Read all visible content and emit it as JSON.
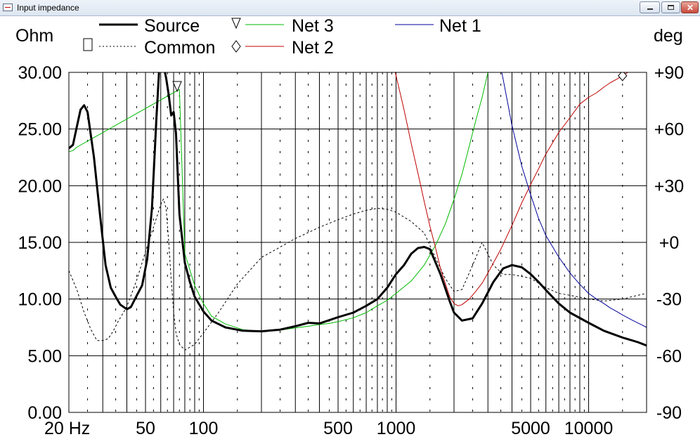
{
  "window": {
    "title": "Input impedance",
    "minimize_icon": "minimize-icon",
    "maximize_icon": "maximize-icon",
    "close_icon": "close-icon"
  },
  "chart_data": {
    "type": "line",
    "title": "",
    "xscale": "log",
    "xlim": [
      20,
      20000
    ],
    "x_tick_labels": [
      {
        "x": 20,
        "label": "20 Hz"
      },
      {
        "x": 50,
        "label": "50"
      },
      {
        "x": 100,
        "label": "100"
      },
      {
        "x": 500,
        "label": "500"
      },
      {
        "x": 1000,
        "label": "1000"
      },
      {
        "x": 5000,
        "label": "5000"
      },
      {
        "x": 10000,
        "label": "10000"
      }
    ],
    "y_left": {
      "label": "Ohm",
      "lim": [
        0,
        30
      ],
      "ticks": [
        "0.00",
        "5.00",
        "10.00",
        "15.00",
        "20.00",
        "25.00",
        "30.00"
      ]
    },
    "y_right": {
      "label": "deg",
      "lim": [
        -90,
        90
      ],
      "ticks": [
        "-90",
        "-60",
        "-30",
        "+0",
        "+30",
        "+60",
        "+90"
      ]
    },
    "grid": true,
    "legend": [
      {
        "name": "Source",
        "color": "#000000",
        "style": "thick"
      },
      {
        "name": "Common",
        "color": "#000000",
        "style": "dotted",
        "marker": "square"
      },
      {
        "name": "Net 3",
        "color": "#00bb00",
        "marker": "triangle-down"
      },
      {
        "name": "Net 2",
        "color": "#c00000",
        "marker": "diamond"
      },
      {
        "name": "Net 1",
        "color": "#000099"
      }
    ],
    "series": [
      {
        "name": "Source",
        "axis": "left",
        "color": "#000000",
        "x": [
          20,
          21,
          22,
          23,
          24,
          25,
          27,
          29,
          31,
          33,
          35,
          37,
          40,
          42,
          45,
          48,
          51,
          54,
          57,
          59,
          60,
          62,
          64,
          66,
          68,
          70,
          72,
          75,
          80,
          85,
          90,
          100,
          110,
          130,
          160,
          200,
          250,
          300,
          350,
          400,
          500,
          600,
          700,
          800,
          900,
          1000,
          1100,
          1200,
          1300,
          1400,
          1500,
          1700,
          1900,
          2000,
          2200,
          2500,
          2800,
          3200,
          3600,
          4000,
          4500,
          5000,
          5500,
          6000,
          7000,
          8000,
          10000,
          12000,
          15000,
          18000,
          20000
        ],
        "y": [
          23.3,
          23.6,
          25.2,
          26.7,
          27.1,
          26.5,
          22.5,
          17.5,
          13,
          11,
          10.2,
          9.5,
          9.1,
          9.3,
          10.3,
          11.2,
          13.5,
          18,
          26,
          30.5,
          31,
          30.6,
          29.5,
          28,
          26.2,
          26.5,
          24.6,
          17.5,
          13.2,
          11.5,
          10.2,
          8.9,
          8.1,
          7.5,
          7.2,
          7.15,
          7.3,
          7.6,
          7.9,
          7.85,
          8.4,
          8.8,
          9.4,
          10,
          11,
          12.2,
          13,
          14,
          14.5,
          14.6,
          14.4,
          12.2,
          9.8,
          8.8,
          8.1,
          8.3,
          9.6,
          11.5,
          12.7,
          13,
          12.8,
          12.2,
          11.5,
          10.8,
          9.6,
          8.8,
          7.9,
          7.2,
          6.6,
          6.2,
          5.9
        ]
      },
      {
        "name": "Common",
        "axis": "right",
        "color": "#000000",
        "x": [
          20,
          22,
          24,
          26,
          28,
          30,
          32,
          34,
          36,
          40,
          45,
          50,
          55,
          60,
          62,
          64,
          66,
          68,
          70,
          72,
          75,
          80,
          90,
          100,
          120,
          150,
          200,
          300,
          400,
          500,
          600,
          700,
          800,
          900,
          1000,
          1200,
          1400,
          1600,
          1800,
          2000,
          2200,
          2500,
          2800,
          3200,
          3600,
          4000,
          5000,
          6000,
          7000,
          8000,
          10000,
          12000,
          15000,
          18000,
          20000
        ],
        "y": [
          -15,
          -25,
          -37,
          -46,
          -52,
          -52,
          -51,
          -47,
          -42,
          -34,
          -20,
          -5,
          8,
          20,
          23,
          18,
          0,
          -20,
          -37,
          -48,
          -54,
          -57,
          -54,
          -48,
          -37,
          -22,
          -8,
          2,
          8,
          12,
          15,
          17,
          18,
          17.5,
          16,
          11,
          5,
          -8,
          -19,
          -26,
          -25,
          -12,
          0,
          -12,
          -17,
          -17,
          -19,
          -24,
          -27,
          -28,
          -30,
          -31,
          -30,
          -28,
          -27
        ]
      },
      {
        "name": "Net 3",
        "axis": "left",
        "color": "#00bb00",
        "x": [
          20,
          21,
          22,
          75,
          80,
          90,
          100,
          110,
          130,
          160,
          200,
          250,
          300,
          350,
          400,
          450,
          500,
          600,
          700,
          800,
          900,
          1000,
          1200,
          1400,
          1600,
          1800,
          2000,
          2200,
          2400,
          2600,
          2800,
          3000,
          3100
        ],
        "y": [
          23,
          23.1,
          23.4,
          28.5,
          14,
          11.2,
          9.6,
          8.5,
          7.8,
          7.3,
          7.15,
          7.25,
          7.45,
          7.6,
          7.75,
          7.85,
          8.0,
          8.35,
          8.8,
          9.4,
          9.9,
          10.5,
          11.6,
          13,
          14.7,
          16.6,
          18.8,
          21,
          23.5,
          25.8,
          27.8,
          30,
          31
        ]
      },
      {
        "name": "Net 2",
        "axis": "left",
        "color": "#c00000",
        "x": [
          950,
          1000,
          1100,
          1200,
          1300,
          1400,
          1500,
          1600,
          1700,
          1800,
          1900,
          2000,
          2100,
          2200,
          2400,
          2600,
          2800,
          3000,
          3500,
          4000,
          4500,
          5000,
          5500,
          6000,
          7000,
          8000,
          9000,
          10000,
          11000,
          12000,
          13000,
          14000,
          15000,
          17000,
          19000
        ],
        "y": [
          31.5,
          29.7,
          26.7,
          23.7,
          21.1,
          18.6,
          16.4,
          14.6,
          12.7,
          11.4,
          10.2,
          9.6,
          9.4,
          9.5,
          10,
          10.7,
          11.4,
          12.3,
          14.4,
          16.5,
          18.5,
          20.1,
          21.5,
          22.8,
          24.7,
          26.0,
          27.2,
          27.8,
          28.2,
          28.7,
          29.1,
          29.4,
          29.7,
          30.3,
          30.6
        ]
      },
      {
        "name": "Net 1",
        "axis": "left",
        "color": "#000099",
        "x": [
          3400,
          3600,
          3800,
          4000,
          4500,
          5000,
          5500,
          6000,
          7000,
          8000,
          9000,
          10000,
          11000,
          12000,
          13000,
          14000,
          15000,
          17000,
          19000,
          20000
        ],
        "y": [
          31.5,
          29.4,
          27.3,
          25.3,
          21.7,
          19.2,
          17.1,
          15.6,
          13.7,
          12.3,
          11.3,
          10.5,
          10.0,
          9.6,
          9.2,
          8.9,
          8.6,
          8.1,
          7.7,
          7.5
        ]
      }
    ]
  }
}
